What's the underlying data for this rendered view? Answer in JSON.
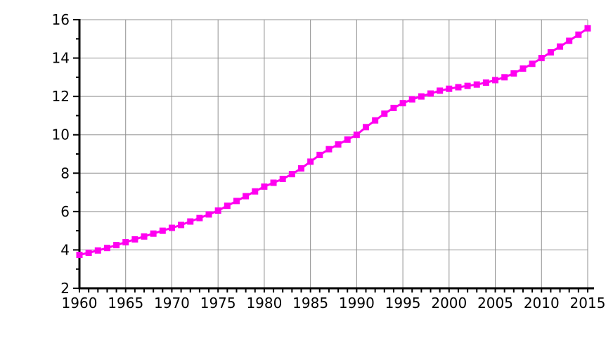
{
  "chart_data": {
    "type": "line",
    "title": "",
    "xlabel": "",
    "ylabel": "",
    "grid": "major",
    "legend": "none",
    "line_color": "#ff00f0",
    "grid_color": "#909090",
    "axis_color": "#000000",
    "marker": "square",
    "xlim": [
      1960,
      2015
    ],
    "ylim": [
      2,
      16
    ],
    "xticks_major": [
      1960,
      1965,
      1970,
      1975,
      1980,
      1985,
      1990,
      1995,
      2000,
      2005,
      2010,
      2015
    ],
    "xtick_labels": [
      "1960",
      "1965",
      "1970",
      "1975",
      "1980",
      "1985",
      "1990",
      "1995",
      "2000",
      "2005",
      "2010",
      "2015"
    ],
    "xticks_minor_step": 1,
    "yticks_major": [
      2,
      4,
      6,
      8,
      10,
      12,
      14,
      16
    ],
    "ytick_labels": [
      "2",
      "4",
      "6",
      "8",
      "10",
      "12",
      "14",
      "16"
    ],
    "yticks_minor": [
      3,
      5,
      7,
      9,
      11,
      13,
      15
    ],
    "x": [
      1960,
      1961,
      1962,
      1963,
      1964,
      1965,
      1966,
      1967,
      1968,
      1969,
      1970,
      1971,
      1972,
      1973,
      1974,
      1975,
      1976,
      1977,
      1978,
      1979,
      1980,
      1981,
      1982,
      1983,
      1984,
      1985,
      1986,
      1987,
      1988,
      1989,
      1990,
      1991,
      1992,
      1993,
      1994,
      1995,
      1996,
      1997,
      1998,
      1999,
      2000,
      2001,
      2002,
      2003,
      2004,
      2005,
      2006,
      2007,
      2008,
      2009,
      2010,
      2011,
      2012,
      2013,
      2014,
      2015
    ],
    "series": [
      {
        "name": "series-1",
        "values": [
          3.74,
          3.85,
          3.97,
          4.1,
          4.25,
          4.4,
          4.55,
          4.7,
          4.85,
          5.0,
          5.15,
          5.3,
          5.48,
          5.66,
          5.85,
          6.05,
          6.3,
          6.55,
          6.8,
          7.05,
          7.3,
          7.5,
          7.7,
          7.95,
          8.25,
          8.6,
          8.95,
          9.25,
          9.5,
          9.75,
          10.0,
          10.4,
          10.75,
          11.1,
          11.4,
          11.65,
          11.85,
          12.0,
          12.15,
          12.3,
          12.4,
          12.48,
          12.55,
          12.62,
          12.72,
          12.85,
          13.0,
          13.2,
          13.45,
          13.7,
          14.0,
          14.3,
          14.6,
          14.9,
          15.22,
          15.55
        ]
      }
    ]
  }
}
